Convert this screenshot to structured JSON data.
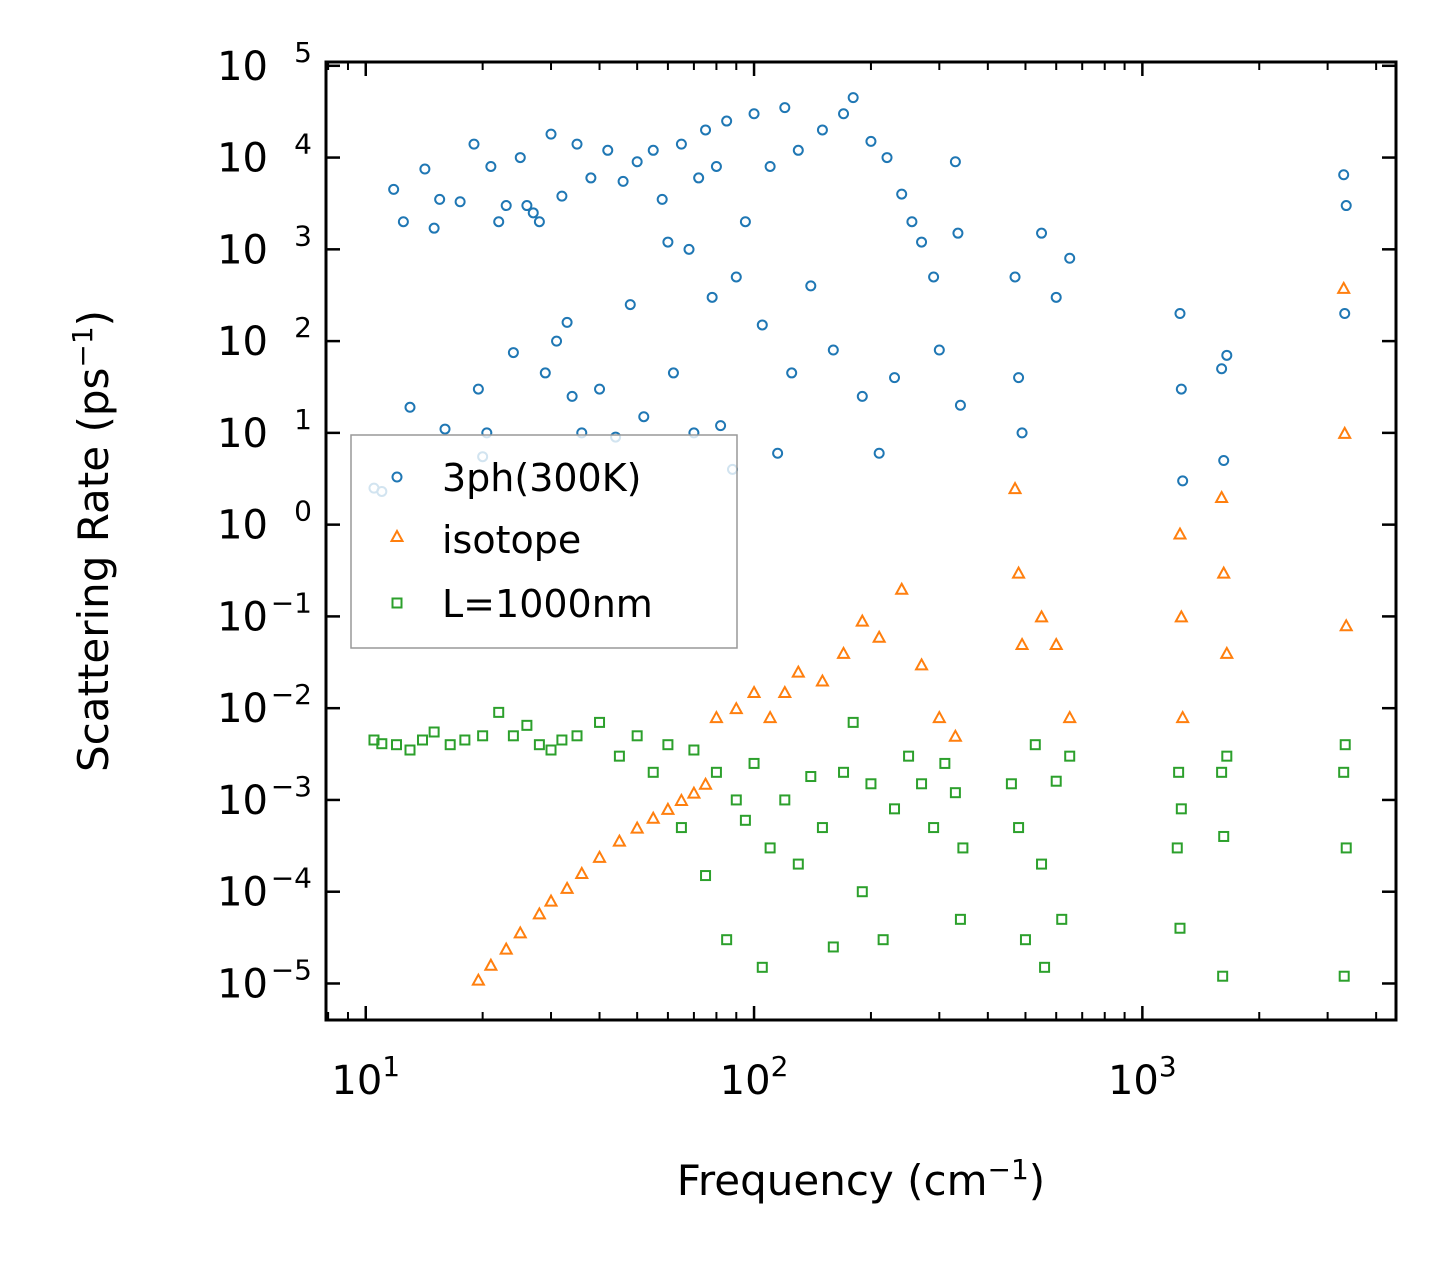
{
  "chart_data": {
    "type": "scatter",
    "title": "",
    "xlabel": "Frequency (cm",
    "xlabel_sup": "−1",
    "xlabel_end": ")",
    "ylabel": "Scattering Rate (ps",
    "ylabel_sup": "−1",
    "ylabel_end": ")",
    "x_scale": "log",
    "y_scale": "log",
    "xlim": [
      7.9,
      4500
    ],
    "ylim": [
      4e-06,
      110000.0
    ],
    "x_ticks": [
      {
        "value": 10,
        "base": "10",
        "exp": "1"
      },
      {
        "value": 100,
        "base": "10",
        "exp": "2"
      },
      {
        "value": 1000,
        "base": "10",
        "exp": "3"
      }
    ],
    "y_ticks": [
      {
        "value": 100000.0,
        "base": "10",
        "exp": "5"
      },
      {
        "value": 10000.0,
        "base": "10",
        "exp": "4"
      },
      {
        "value": 1000.0,
        "base": "10",
        "exp": "3"
      },
      {
        "value": 100.0,
        "base": "10",
        "exp": "2"
      },
      {
        "value": 10.0,
        "base": "10",
        "exp": "1"
      },
      {
        "value": 1.0,
        "base": "10",
        "exp": "0"
      },
      {
        "value": 0.1,
        "base": "10",
        "exp": "−1"
      },
      {
        "value": 0.01,
        "base": "10",
        "exp": "−2"
      },
      {
        "value": 0.001,
        "base": "10",
        "exp": "−3"
      },
      {
        "value": 0.0001,
        "base": "10",
        "exp": "−4"
      },
      {
        "value": 1e-05,
        "base": "10",
        "exp": "−5"
      }
    ],
    "legend_position": "center-left",
    "series": [
      {
        "name": "3ph(300K)",
        "marker": "circle",
        "color": "#1f77b4",
        "points": [
          [
            10.5,
            2.5
          ],
          [
            11.0,
            2.3
          ],
          [
            11.8,
            4500
          ],
          [
            12.5,
            2000
          ],
          [
            13.0,
            19
          ],
          [
            14.2,
            7500
          ],
          [
            15.0,
            1700
          ],
          [
            15.5,
            3500
          ],
          [
            16.0,
            11
          ],
          [
            17.5,
            3300
          ],
          [
            19.0,
            14000
          ],
          [
            19.5,
            30
          ],
          [
            20.0,
            5.5
          ],
          [
            20.5,
            10
          ],
          [
            21.0,
            8000
          ],
          [
            22.0,
            2000
          ],
          [
            23.0,
            3000
          ],
          [
            24.0,
            75
          ],
          [
            25.0,
            10000
          ],
          [
            26.0,
            3000
          ],
          [
            27.0,
            2500
          ],
          [
            28.0,
            2000
          ],
          [
            29.0,
            45
          ],
          [
            30.0,
            18000
          ],
          [
            31.0,
            100
          ],
          [
            32.0,
            3800
          ],
          [
            33.0,
            160
          ],
          [
            34.0,
            25
          ],
          [
            35.0,
            14000
          ],
          [
            36.0,
            10
          ],
          [
            38.0,
            6000
          ],
          [
            40.0,
            30
          ],
          [
            42.0,
            12000
          ],
          [
            44.0,
            9
          ],
          [
            46.0,
            5500
          ],
          [
            48.0,
            250
          ],
          [
            50.0,
            9000
          ],
          [
            52.0,
            15
          ],
          [
            55.0,
            12000
          ],
          [
            58.0,
            3500
          ],
          [
            60.0,
            1200
          ],
          [
            62.0,
            45
          ],
          [
            65.0,
            14000
          ],
          [
            68.0,
            1000
          ],
          [
            70.0,
            10
          ],
          [
            72.0,
            6000
          ],
          [
            75.0,
            20000
          ],
          [
            78.0,
            300
          ],
          [
            80.0,
            8000
          ],
          [
            82.0,
            12
          ],
          [
            85.0,
            25000
          ],
          [
            88.0,
            4
          ],
          [
            90.0,
            500
          ],
          [
            95.0,
            2000
          ],
          [
            100.0,
            30000
          ],
          [
            105.0,
            150
          ],
          [
            110.0,
            8000
          ],
          [
            115.0,
            6
          ],
          [
            120.0,
            35000
          ],
          [
            125.0,
            45
          ],
          [
            130.0,
            12000
          ],
          [
            140.0,
            400
          ],
          [
            150.0,
            20000
          ],
          [
            160.0,
            80
          ],
          [
            170.0,
            30000
          ],
          [
            180.0,
            45000
          ],
          [
            190.0,
            25
          ],
          [
            200.0,
            15000
          ],
          [
            210.0,
            6
          ],
          [
            220.0,
            10000
          ],
          [
            230.0,
            40
          ],
          [
            240.0,
            4000
          ],
          [
            255.0,
            2000
          ],
          [
            270.0,
            1200
          ],
          [
            290.0,
            500
          ],
          [
            300.0,
            80
          ],
          [
            330.0,
            9000
          ],
          [
            335.0,
            1500
          ],
          [
            340.0,
            20
          ],
          [
            470.0,
            500
          ],
          [
            480.0,
            40
          ],
          [
            490.0,
            10
          ],
          [
            550.0,
            1500
          ],
          [
            600.0,
            300
          ],
          [
            650.0,
            800
          ],
          [
            1250.0,
            200
          ],
          [
            1260.0,
            30
          ],
          [
            1270.0,
            3
          ],
          [
            1600.0,
            50
          ],
          [
            1620.0,
            5
          ],
          [
            1650.0,
            70
          ],
          [
            3300.0,
            6500
          ],
          [
            3320.0,
            200
          ],
          [
            3350.0,
            3000
          ]
        ]
      },
      {
        "name": "isotope",
        "marker": "triangle",
        "color": "#ff7f0e",
        "points": [
          [
            19.5,
            1.1e-05
          ],
          [
            21.0,
            1.6e-05
          ],
          [
            23.0,
            2.4e-05
          ],
          [
            25.0,
            3.6e-05
          ],
          [
            28.0,
            5.8e-05
          ],
          [
            30.0,
            8e-05
          ],
          [
            33.0,
            0.00011
          ],
          [
            36.0,
            0.00016
          ],
          [
            40.0,
            0.00024
          ],
          [
            45.0,
            0.00036
          ],
          [
            50.0,
            0.0005
          ],
          [
            55.0,
            0.00064
          ],
          [
            60.0,
            0.0008
          ],
          [
            65.0,
            0.001
          ],
          [
            70.0,
            0.0012
          ],
          [
            75.0,
            0.0015
          ],
          [
            80.0,
            0.008
          ],
          [
            90.0,
            0.01
          ],
          [
            100.0,
            0.015
          ],
          [
            110.0,
            0.008
          ],
          [
            120.0,
            0.015
          ],
          [
            130.0,
            0.025
          ],
          [
            150.0,
            0.02
          ],
          [
            170.0,
            0.04
          ],
          [
            190.0,
            0.09
          ],
          [
            210.0,
            0.06
          ],
          [
            240.0,
            0.2
          ],
          [
            270.0,
            0.03
          ],
          [
            300.0,
            0.008
          ],
          [
            330.0,
            0.005
          ],
          [
            470.0,
            2.5
          ],
          [
            480.0,
            0.3
          ],
          [
            490.0,
            0.05
          ],
          [
            550.0,
            0.1
          ],
          [
            600.0,
            0.05
          ],
          [
            650.0,
            0.008
          ],
          [
            1250.0,
            0.8
          ],
          [
            1260.0,
            0.1
          ],
          [
            1270.0,
            0.008
          ],
          [
            1600.0,
            2.0
          ],
          [
            1620.0,
            0.3
          ],
          [
            1650.0,
            0.04
          ],
          [
            3300.0,
            380
          ],
          [
            3320.0,
            10
          ],
          [
            3350.0,
            0.08
          ]
        ]
      },
      {
        "name": "L=1000nm",
        "marker": "square",
        "color": "#2ca02c",
        "points": [
          [
            10.5,
            0.0045
          ],
          [
            11.0,
            0.0041
          ],
          [
            12.0,
            0.004
          ],
          [
            13.0,
            0.0035
          ],
          [
            14.0,
            0.0045
          ],
          [
            15.0,
            0.0055
          ],
          [
            16.5,
            0.004
          ],
          [
            18.0,
            0.0045
          ],
          [
            20.0,
            0.005
          ],
          [
            22.0,
            0.009
          ],
          [
            24.0,
            0.005
          ],
          [
            26.0,
            0.0065
          ],
          [
            28.0,
            0.004
          ],
          [
            30.0,
            0.0035
          ],
          [
            32.0,
            0.0045
          ],
          [
            35.0,
            0.005
          ],
          [
            40.0,
            0.007
          ],
          [
            45.0,
            0.003
          ],
          [
            50.0,
            0.005
          ],
          [
            55.0,
            0.002
          ],
          [
            60.0,
            0.004
          ],
          [
            65.0,
            0.0005
          ],
          [
            70.0,
            0.0035
          ],
          [
            75.0,
            0.00015
          ],
          [
            80.0,
            0.002
          ],
          [
            85.0,
            3e-05
          ],
          [
            90.0,
            0.001
          ],
          [
            95.0,
            0.0006
          ],
          [
            100.0,
            0.0025
          ],
          [
            105.0,
            1.5e-05
          ],
          [
            110.0,
            0.0003
          ],
          [
            120.0,
            0.001
          ],
          [
            130.0,
            0.0002
          ],
          [
            140.0,
            0.0018
          ],
          [
            150.0,
            0.0005
          ],
          [
            160.0,
            2.5e-05
          ],
          [
            170.0,
            0.002
          ],
          [
            180.0,
            0.007
          ],
          [
            190.0,
            0.0001
          ],
          [
            200.0,
            0.0015
          ],
          [
            215.0,
            3e-05
          ],
          [
            230.0,
            0.0008
          ],
          [
            250.0,
            0.003
          ],
          [
            270.0,
            0.0015
          ],
          [
            290.0,
            0.0005
          ],
          [
            310.0,
            0.0025
          ],
          [
            330.0,
            0.0012
          ],
          [
            340.0,
            5e-05
          ],
          [
            345.0,
            0.0003
          ],
          [
            460.0,
            0.0015
          ],
          [
            480.0,
            0.0005
          ],
          [
            500.0,
            3e-05
          ],
          [
            530.0,
            0.004
          ],
          [
            550.0,
            0.0002
          ],
          [
            560.0,
            1.5e-05
          ],
          [
            600.0,
            0.0016
          ],
          [
            620.0,
            5e-05
          ],
          [
            650.0,
            0.003
          ],
          [
            1230.0,
            0.0003
          ],
          [
            1240.0,
            0.002
          ],
          [
            1250.0,
            4e-05
          ],
          [
            1260.0,
            0.0008
          ],
          [
            1600.0,
            0.002
          ],
          [
            1610.0,
            1.2e-05
          ],
          [
            1620.0,
            0.0004
          ],
          [
            1650.0,
            0.003
          ],
          [
            3300.0,
            0.002
          ],
          [
            3310.0,
            1.2e-05
          ],
          [
            3330.0,
            0.004
          ],
          [
            3350.0,
            0.0003
          ]
        ]
      }
    ]
  }
}
